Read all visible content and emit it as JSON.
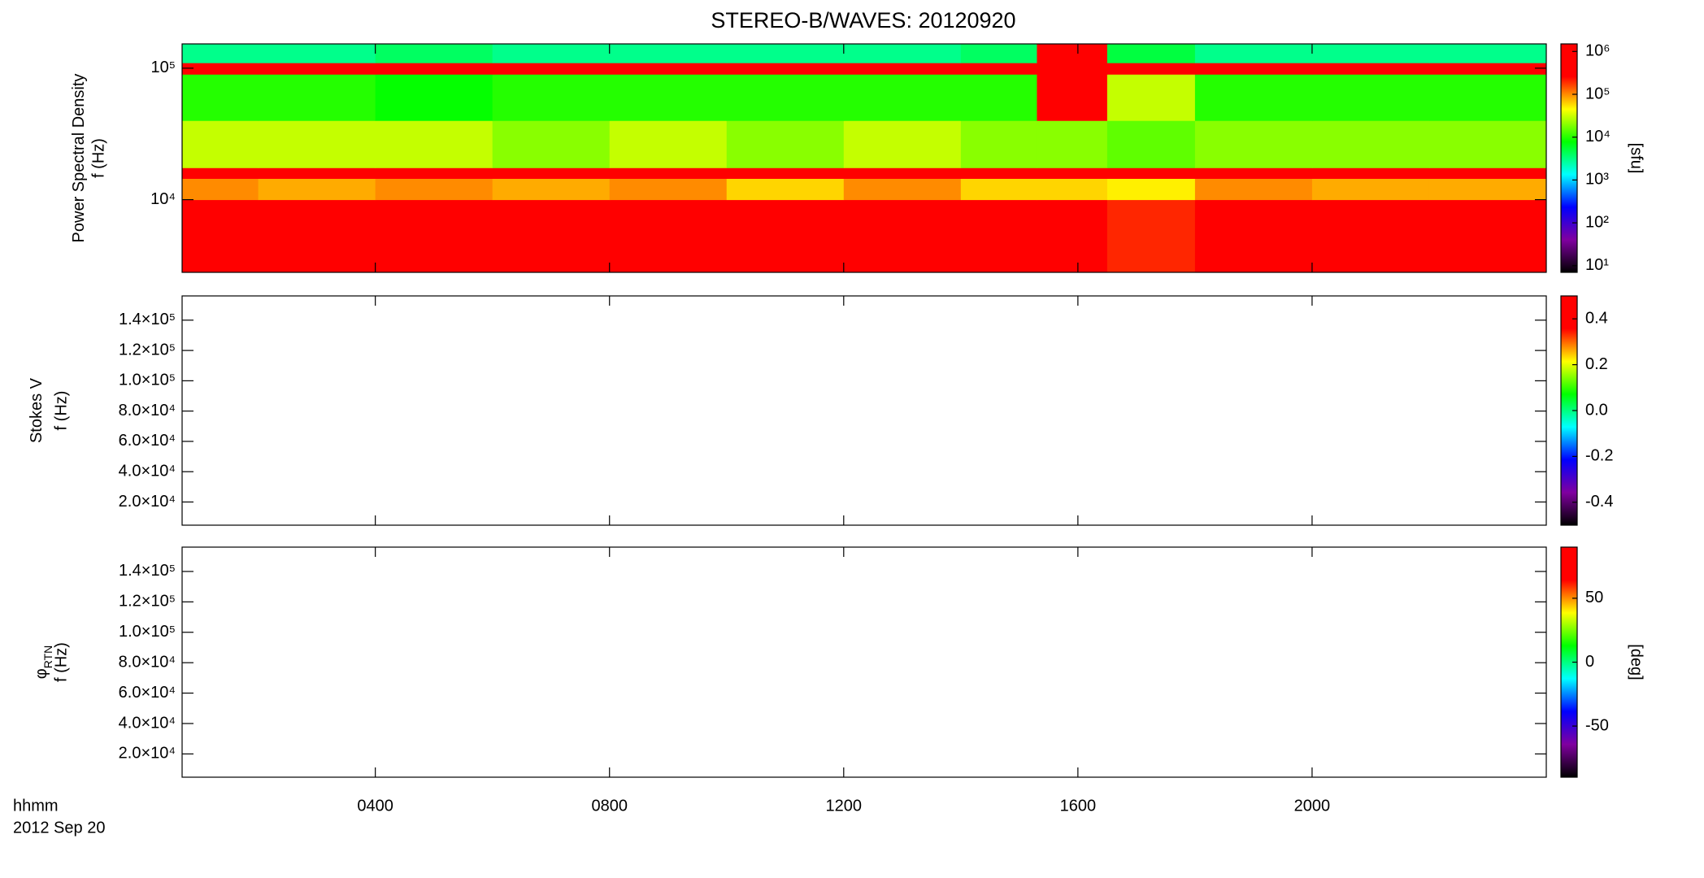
{
  "chart_data": [
    {
      "type": "heatmap",
      "title": "STEREO-B/WAVES: 20120920",
      "ylabel": "Power Spectral Density",
      "ylabel2": "f (Hz)",
      "xlim": [
        0.7,
        24
      ],
      "xticks": [
        4,
        8,
        12,
        16,
        20
      ],
      "ylim": [
        2800,
        153000
      ],
      "ylog": true,
      "yticks": [
        {
          "value": 10000,
          "label": "10⁴"
        },
        {
          "value": 100000,
          "label": "10⁵"
        }
      ],
      "time_edges": [
        0.7,
        2,
        4,
        6,
        8,
        10,
        12,
        14,
        15.3,
        16.5,
        18,
        20,
        22,
        24
      ],
      "freq_edges": [
        2800,
        10000,
        14500,
        17500,
        40000,
        90000,
        110000,
        153000
      ],
      "z": [
        [
          1000000,
          500000,
          1000000,
          500000,
          1000000,
          300000,
          1000000,
          300000,
          300000,
          200000,
          1000000,
          500000,
          500000
        ],
        [
          100000,
          80000,
          100000,
          80000,
          100000,
          60000,
          100000,
          60000,
          60000,
          50000,
          100000,
          80000,
          80000
        ],
        [
          1000000,
          1000000,
          1000000,
          1000000,
          1000000,
          1000000,
          1000000,
          1000000,
          1000000,
          1000000,
          1000000,
          1000000,
          1000000
        ],
        [
          30000,
          30000,
          30000,
          20000,
          30000,
          20000,
          30000,
          20000,
          20000,
          15000,
          20000,
          20000,
          20000
        ],
        [
          10000,
          10000,
          8000,
          10000,
          10000,
          10000,
          10000,
          10000,
          1000000,
          30000,
          10000,
          10000,
          10000
        ],
        [
          500000,
          500000,
          500000,
          500000,
          500000,
          500000,
          500000,
          500000,
          1000000,
          500000,
          500000,
          500000,
          500000
        ],
        [
          3000,
          3000,
          4000,
          3000,
          3000,
          3000,
          3000,
          4000,
          1000000,
          5000,
          3000,
          3000,
          3000
        ]
      ],
      "colormap": [
        "#000000",
        "#8000a0",
        "#0000ff",
        "#00ffff",
        "#00ff00",
        "#ffff00",
        "#ff0000",
        "#ff0000"
      ],
      "clim": [
        7,
        1500000
      ],
      "clog": true,
      "cticks": [
        {
          "value": 10,
          "label": "10¹"
        },
        {
          "value": 100,
          "label": "10²"
        },
        {
          "value": 1000,
          "label": "10³"
        },
        {
          "value": 10000,
          "label": "10⁴"
        },
        {
          "value": 100000,
          "label": "10⁵"
        },
        {
          "value": 1000000,
          "label": "10⁶"
        }
      ],
      "clabel": "[sfu]"
    },
    {
      "type": "heatmap",
      "ylabel": "Stokes V",
      "ylabel2": "f (Hz)",
      "xlim": [
        0.7,
        24
      ],
      "xticks": [
        4,
        8,
        12,
        16,
        20
      ],
      "ylim": [
        4700,
        156000
      ],
      "yticks": [
        {
          "value": 20000,
          "label": "2.0×10⁴"
        },
        {
          "value": 40000,
          "label": "4.0×10⁴"
        },
        {
          "value": 60000,
          "label": "6.0×10⁴"
        },
        {
          "value": 80000,
          "label": "8.0×10⁴"
        },
        {
          "value": 100000,
          "label": "1.0×10⁵"
        },
        {
          "value": 120000,
          "label": "1.2×10⁵"
        },
        {
          "value": 140000,
          "label": "1.4×10⁵"
        }
      ],
      "colormap": [
        "#000000",
        "#8000a0",
        "#0000ff",
        "#00ffff",
        "#00ff00",
        "#ffff00",
        "#ff0000",
        "#ff0000"
      ],
      "clim": [
        -0.5,
        0.5
      ],
      "cticks": [
        -0.4,
        -0.2,
        {
          "value": 0,
          "label": "0.0"
        },
        0.2,
        0.4
      ]
    },
    {
      "type": "heatmap",
      "ylabel": "φ",
      "ylabel_sub": "RTN",
      "ylabel2": "f (Hz)",
      "xlabel": "hhmm",
      "xsublabel": "2012 Sep 20",
      "xlim": [
        0.7,
        24
      ],
      "xticks": [
        {
          "value": 4,
          "label": "0400"
        },
        {
          "value": 8,
          "label": "0800"
        },
        {
          "value": 12,
          "label": "1200"
        },
        {
          "value": 16,
          "label": "1600"
        },
        {
          "value": 20,
          "label": "2000"
        }
      ],
      "ylim": [
        4700,
        156000
      ],
      "yticks": [
        {
          "value": 20000,
          "label": "2.0×10⁴"
        },
        {
          "value": 40000,
          "label": "4.0×10⁴"
        },
        {
          "value": 60000,
          "label": "6.0×10⁴"
        },
        {
          "value": 80000,
          "label": "8.0×10⁴"
        },
        {
          "value": 100000,
          "label": "1.0×10⁵"
        },
        {
          "value": 120000,
          "label": "1.2×10⁵"
        },
        {
          "value": 140000,
          "label": "1.4×10⁵"
        }
      ],
      "colormap": [
        "#000000",
        "#8000a0",
        "#0000ff",
        "#00ffff",
        "#00ff00",
        "#ffff00",
        "#ff0000",
        "#ff0000"
      ],
      "clim": [
        -90,
        90
      ],
      "cticks": [
        -50,
        0,
        50
      ],
      "clabel": "[deg]"
    }
  ]
}
